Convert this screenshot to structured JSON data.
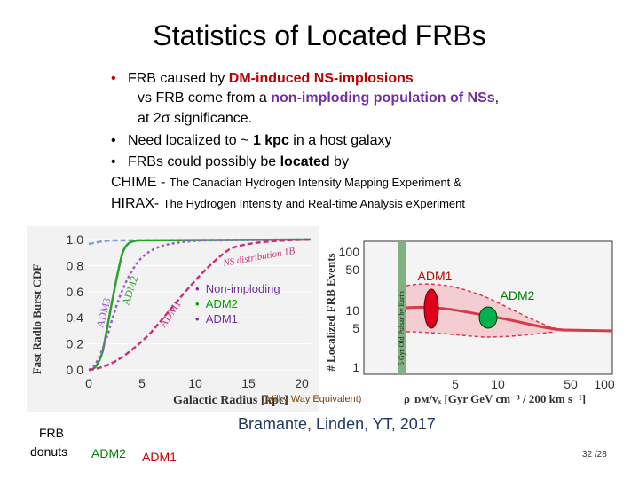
{
  "title": "Statistics of Located FRBs",
  "bullets": {
    "b1_pre": "FRB caused by ",
    "b1_bold": "DM-induced NS-implosions",
    "b1_l2_pre": "vs FRB come from a ",
    "b1_l2_bold": "non-imploding population of NSs",
    "b1_l2_post": ",",
    "b1_l3": "at 2σ significance.",
    "b2_pre": "Need localized to ",
    "b2_tilde": "~ ",
    "b2_bold": "1 kpc",
    "b2_post": " in a host galaxy",
    "b3_pre": "FRBs could possibly be ",
    "b3_bold": "located",
    "b3_post": " by"
  },
  "chime": {
    "abbr": "CHIME - ",
    "full": "The Canadian Hydrogen Intensity Mapping Experiment &"
  },
  "hirax": {
    "abbr": "HIRAX- ",
    "full": "The Hydrogen Intensity and Real-time Analysis eXperiment"
  },
  "left_plot": {
    "ylabel": "Fast Radio Burst CDF",
    "xlabel": "Galactic Radius   [kpc]",
    "yticks": [
      "0.0",
      "0.2",
      "0.4",
      "0.6",
      "0.8",
      "1.0"
    ],
    "xticks": [
      "0",
      "5",
      "10",
      "15",
      "20"
    ],
    "curve_labels": {
      "adm3": "ADM3",
      "adm2": "ADM2",
      "adm1": "ADM1",
      "ns": "NS distribution 1B"
    },
    "colors": {
      "ns": "#7f9fd8",
      "adm2": "#2ca02c",
      "adm3": "#9b59d0",
      "adm1": "#c8327a"
    }
  },
  "legend": [
    "Non-imploding",
    "ADM2",
    "ADM1"
  ],
  "legend_colors": [
    "#7030a0",
    "#00a000",
    "#7030a0"
  ],
  "right_plot": {
    "ylabel": "# Localized FRB Events",
    "vlabel": "5 Gyr Old Pulsar by Earth",
    "yticks": [
      "100",
      "50",
      "10",
      "5",
      "1"
    ],
    "xticks": [
      "5",
      "10",
      "50",
      "100"
    ],
    "xlabel_a": "ρ",
    "xlabel": "ᴅᴍ/vₓ  [Gyr  GeV cm⁻³ / 200 km s⁻¹]",
    "milky": "(Milky Way Equivalent)",
    "adm1_label": "ADM1",
    "adm2_label": "ADM2",
    "adm1_color": "#e0001b",
    "adm2_color": "#00b050"
  },
  "citation": "Bramante, Linden, YT, 2017",
  "footer": {
    "frb": "FRB",
    "donuts": "donuts",
    "adm2": "ADM2",
    "adm1": "ADM1",
    "page": "32 /28"
  }
}
